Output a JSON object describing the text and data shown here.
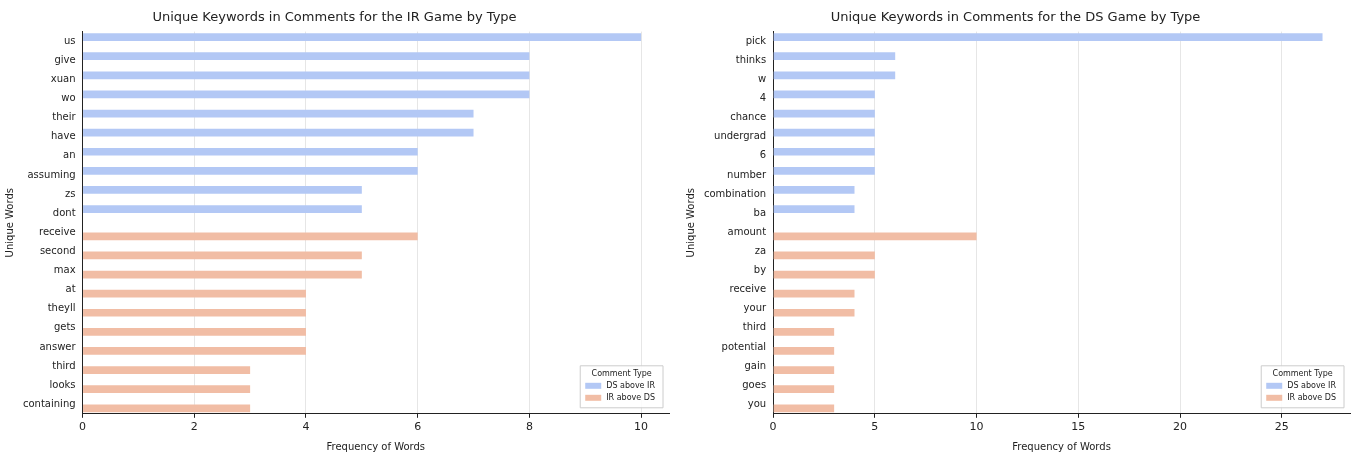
{
  "chart_data": [
    {
      "type": "bar",
      "orientation": "horizontal",
      "title": "Unique Keywords in Comments for the IR Game by Type",
      "xlabel": "Frequency of Words",
      "ylabel": "Unique Words",
      "legend_title": "Comment Type",
      "legend": "bottom right",
      "grid": "x",
      "categories": [
        "us",
        "give",
        "xuan",
        "wo",
        "their",
        "have",
        "an",
        "assuming",
        "zs",
        "dont",
        "receive",
        "second",
        "max",
        "at",
        "theyll",
        "gets",
        "answer",
        "third",
        "looks",
        "containing"
      ],
      "series": [
        {
          "name": "DS above IR",
          "color": "#b3c8f5",
          "values": [
            10,
            8,
            8,
            8,
            7,
            7,
            6,
            6,
            5,
            5,
            null,
            null,
            null,
            null,
            null,
            null,
            null,
            null,
            null,
            null
          ]
        },
        {
          "name": "IR above DS",
          "color": "#f1bda5",
          "values": [
            null,
            null,
            null,
            null,
            null,
            null,
            null,
            null,
            null,
            null,
            6,
            5,
            5,
            4,
            4,
            4,
            4,
            3,
            3,
            3
          ]
        }
      ],
      "xlim": [
        0,
        10.5
      ],
      "xticks": [
        0,
        2,
        4,
        6,
        8,
        10
      ]
    },
    {
      "type": "bar",
      "orientation": "horizontal",
      "title": "Unique Keywords in Comments for the DS Game by Type",
      "xlabel": "Frequency of Words",
      "ylabel": "Unique Words",
      "legend_title": "Comment Type",
      "legend": "bottom right",
      "grid": "x",
      "categories": [
        "pick",
        "thinks",
        "w",
        "4",
        "chance",
        "undergrad",
        "6",
        "number",
        "combination",
        "ba",
        "amount",
        "za",
        "by",
        "receive",
        "your",
        "third",
        "potential",
        "gain",
        "goes",
        "you"
      ],
      "series": [
        {
          "name": "DS above IR",
          "color": "#b3c8f5",
          "values": [
            27,
            6,
            6,
            5,
            5,
            5,
            5,
            5,
            4,
            4,
            null,
            null,
            null,
            null,
            null,
            null,
            null,
            null,
            null,
            null
          ]
        },
        {
          "name": "IR above DS",
          "color": "#f1bda5",
          "values": [
            null,
            null,
            null,
            null,
            null,
            null,
            null,
            null,
            null,
            null,
            10,
            5,
            5,
            4,
            4,
            3,
            3,
            3,
            3,
            3
          ]
        }
      ],
      "xlim": [
        0,
        28.35
      ],
      "xticks": [
        0,
        5,
        10,
        15,
        20,
        25
      ]
    }
  ]
}
